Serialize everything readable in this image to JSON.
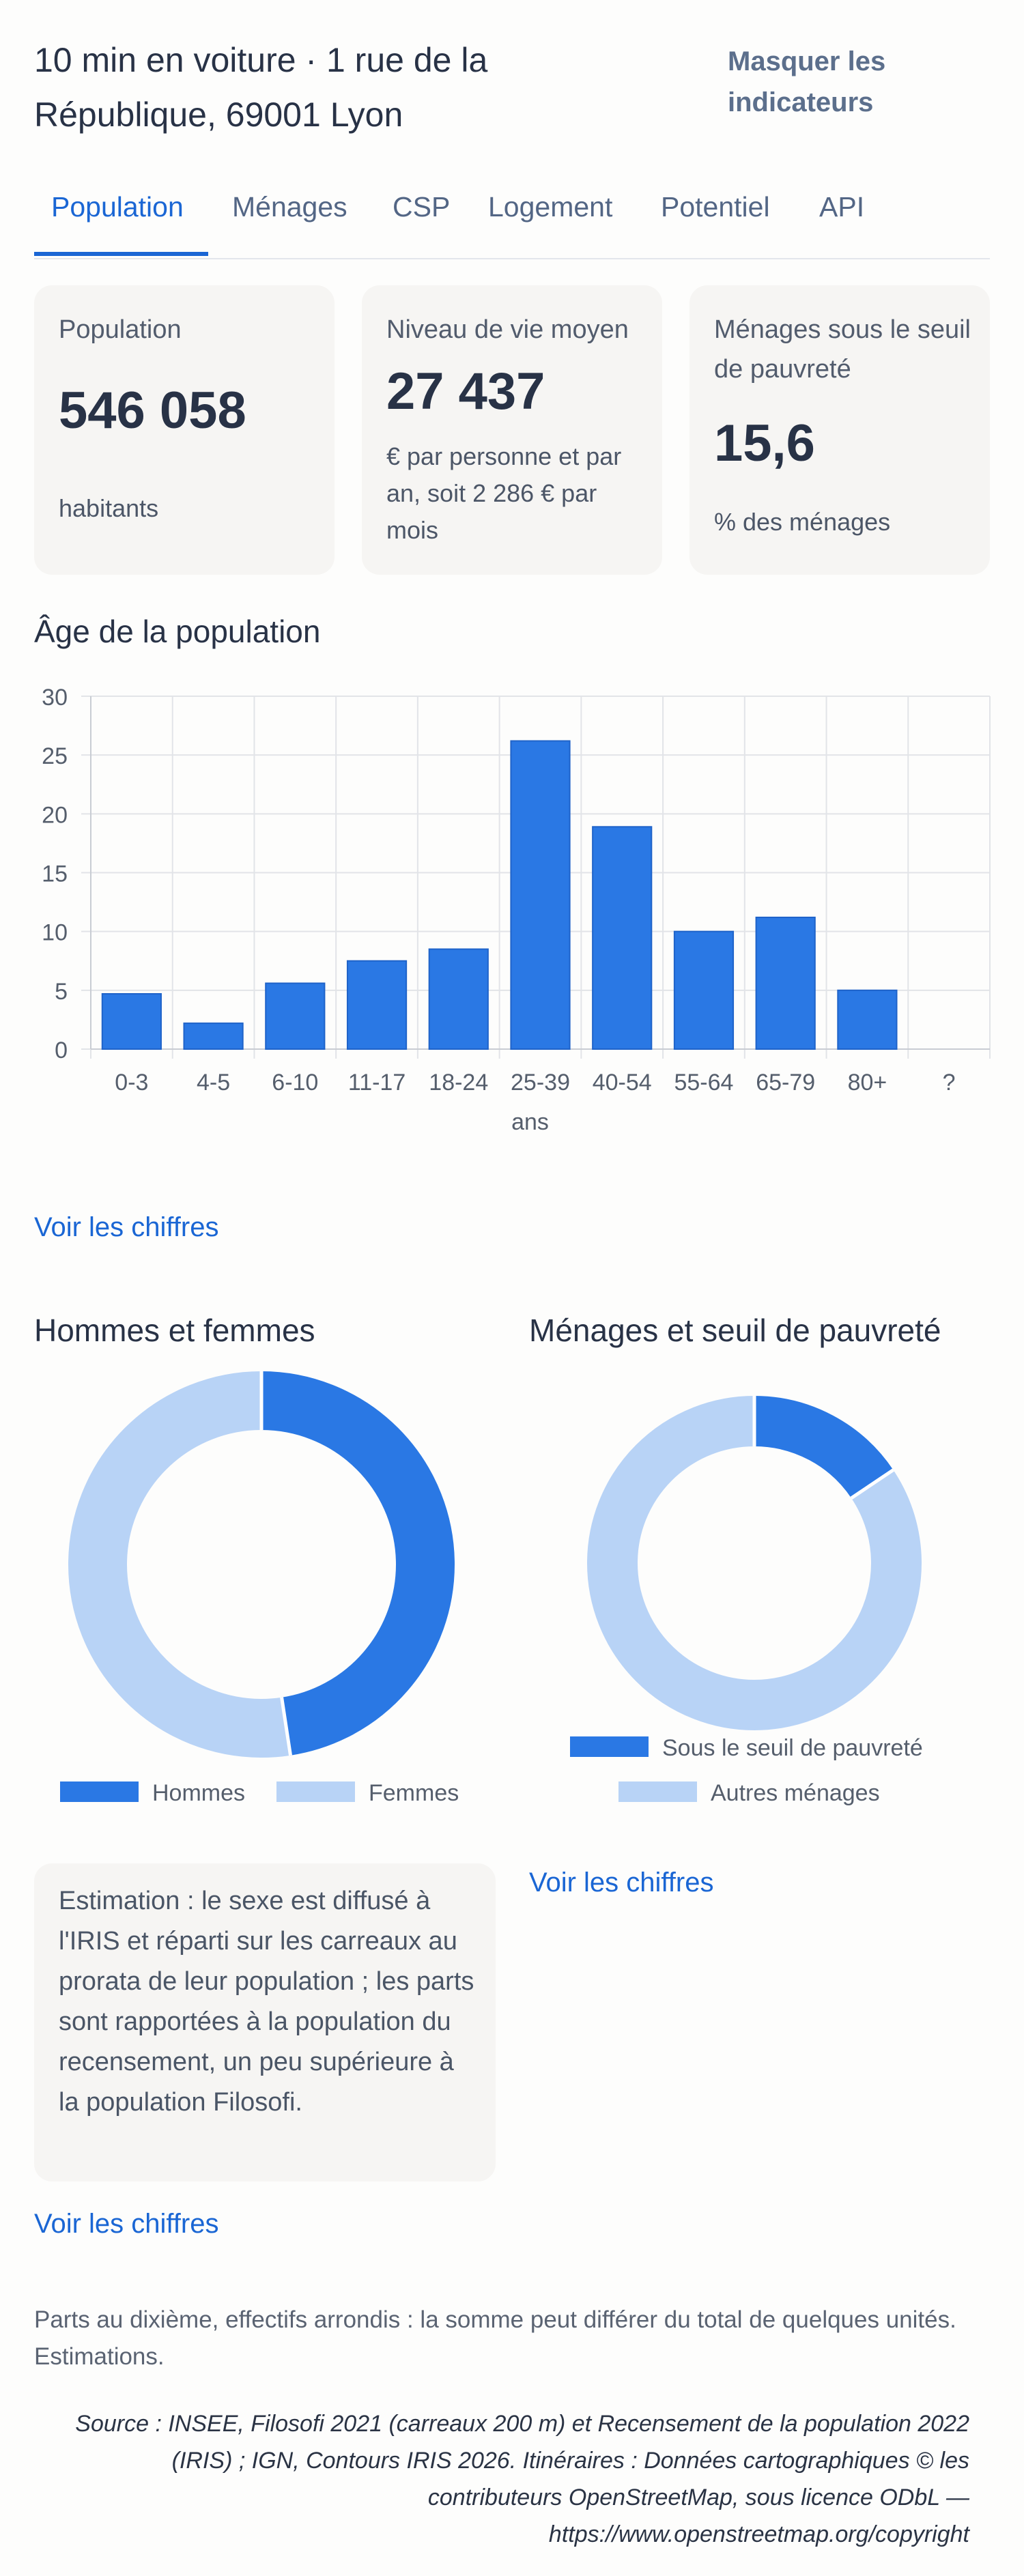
{
  "header": {
    "address": "10 min en voiture · 1 rue de la République, 69001 Lyon",
    "hide_button": "Masquer les indicateurs"
  },
  "tabs": [
    "Population",
    "Ménages",
    "CSP",
    "Logement",
    "Potentiel",
    "API"
  ],
  "cards": {
    "population": {
      "label": "Population",
      "value": "546 058",
      "sub": "habitants"
    },
    "income": {
      "label": "Niveau de vie moyen",
      "value": "27 437",
      "sub": "€ par personne et par an, soit 2 286 € par mois"
    },
    "poverty": {
      "label": "Ménages sous le seuil de pauvreté",
      "value": "15,6",
      "sub": "% des ménages"
    }
  },
  "age_section": {
    "title": "Âge de la population",
    "link": "Voir les chiffres"
  },
  "gender_section": {
    "title": "Hommes et femmes",
    "link": "Voir les chiffres"
  },
  "poverty_section": {
    "title": "Ménages et seuil de pauvreté",
    "link": "Voir les chiffres"
  },
  "note": "Estimation : le sexe est diffusé à l'IRIS et réparti sur les carreaux au prorata de leur population ; les parts sont rapportées à la population du recensement, un peu supérieure à la population Filosofi.",
  "footer": {
    "rounding": "Parts au dixième, effectifs arrondis : la somme peut différer du total de quelques unités. Estimations.",
    "source": "Source : INSEE, Filosofi 2021 (carreaux 200 m) et Recensement de la population 2022 (IRIS) ; IGN, Contours IRIS 2026. Itinéraires : Données cartographiques © les contributeurs OpenStreetMap, sous licence ODbL — https://www.openstreetmap.org/copyright"
  },
  "colors": {
    "accent": "#1a66d4",
    "bar": "#2a78e4",
    "light": "#b8d3f6"
  },
  "chart_data": [
    {
      "type": "bar",
      "title": "Âge de la population",
      "categories": [
        "0-3",
        "4-5",
        "6-10",
        "11-17",
        "18-24",
        "25-39",
        "40-54",
        "55-64",
        "65-79",
        "80+",
        "?"
      ],
      "values": [
        4.7,
        2.2,
        5.6,
        7.5,
        8.5,
        26.2,
        18.9,
        10.0,
        11.2,
        5.0,
        0
      ],
      "xlabel": "ans",
      "ylabel": "",
      "ylim": [
        0,
        30
      ],
      "yticks": [
        0,
        5,
        10,
        15,
        20,
        25,
        30
      ],
      "grid": true
    },
    {
      "type": "pie",
      "title": "Hommes et femmes",
      "labels": [
        "Hommes",
        "Femmes"
      ],
      "values": [
        47.6,
        52.4
      ],
      "legend": "bottom"
    },
    {
      "type": "pie",
      "title": "Ménages et seuil de pauvreté",
      "labels": [
        "Sous le seuil de pauvreté",
        "Autres ménages"
      ],
      "values": [
        15.6,
        84.4
      ],
      "legend": "bottom"
    }
  ]
}
